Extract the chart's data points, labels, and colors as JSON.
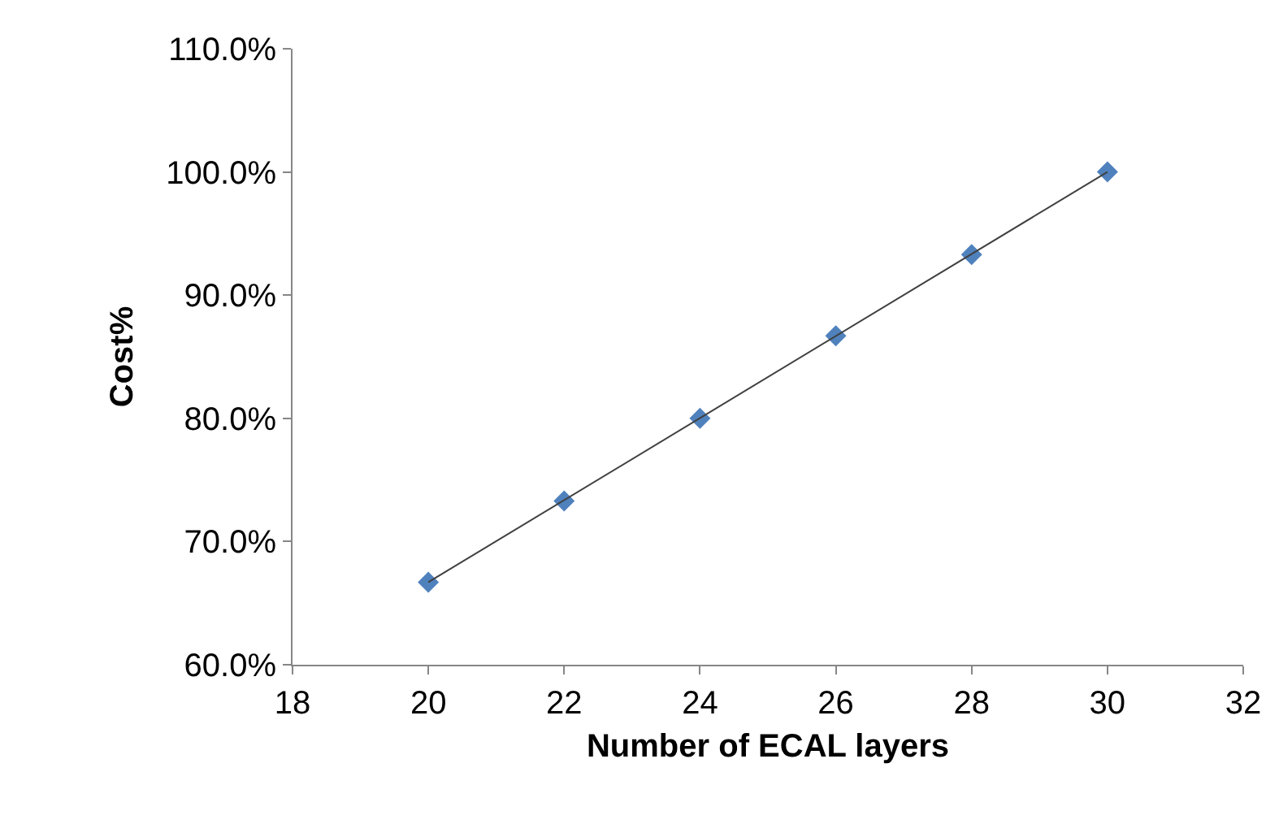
{
  "chart_data": {
    "type": "scatter",
    "xlabel": "Number of ECAL layers",
    "ylabel": "Cost%",
    "x": [
      20,
      22,
      24,
      26,
      28,
      30
    ],
    "series": [
      {
        "color": "#4f81bd",
        "marker": "diamond",
        "values": [
          66.7,
          73.3,
          80.0,
          86.7,
          93.3,
          100.0
        ]
      },
      {
        "type": "line",
        "color": "#404040",
        "marker": "none",
        "x": [
          20,
          30
        ],
        "values": [
          66.7,
          100.0
        ]
      }
    ],
    "xlim": [
      18,
      32
    ],
    "xticks": [
      18,
      20,
      22,
      24,
      26,
      28,
      30,
      32
    ],
    "ylim": [
      60,
      110
    ],
    "yticks": [
      {
        "value": 60,
        "label": "60.0%"
      },
      {
        "value": 70,
        "label": "70.0%"
      },
      {
        "value": 80,
        "label": "80.0%"
      },
      {
        "value": 90,
        "label": "90.0%"
      },
      {
        "value": 100,
        "label": "100.0%"
      },
      {
        "value": 110,
        "label": "110.0%"
      }
    ]
  }
}
